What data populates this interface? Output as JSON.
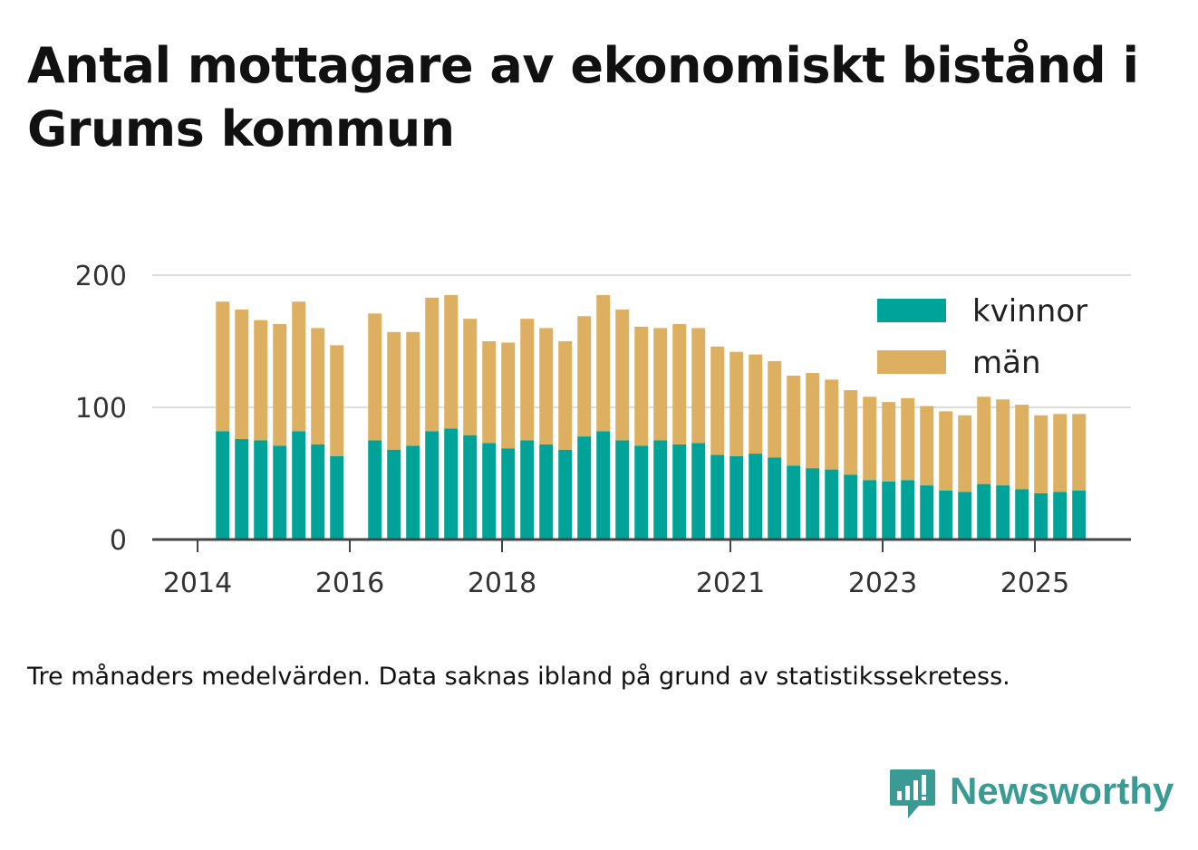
{
  "title": "Antal mottagare av ekonomiskt bistånd i Grums kommun",
  "note": "Tre månaders medelvärden. Data saknas ibland på grund av statistikssekretess.",
  "brand": {
    "name": "Newsworthy",
    "icon": "newsworthy-logo-icon",
    "color": "#3a9a94"
  },
  "colors": {
    "kvinnor": "#00a398",
    "man": "#dcb060",
    "grid": "#dddddd",
    "axis": "#444444"
  },
  "chart_data": {
    "type": "bar",
    "stacked": true,
    "x_unit": "year",
    "x": [
      2014.33,
      2014.58,
      2014.83,
      2015.08,
      2015.33,
      2015.58,
      2015.83,
      2016.33,
      2016.58,
      2016.83,
      2017.08,
      2017.33,
      2017.58,
      2017.83,
      2018.08,
      2018.33,
      2018.58,
      2018.83,
      2019.08,
      2019.33,
      2019.58,
      2019.83,
      2020.08,
      2020.33,
      2020.58,
      2020.83,
      2021.08,
      2021.33,
      2021.58,
      2021.83,
      2022.08,
      2022.33,
      2022.58,
      2022.83,
      2023.08,
      2023.33,
      2023.58,
      2023.83,
      2024.08,
      2024.33,
      2024.58,
      2024.83,
      2025.08,
      2025.33,
      2025.58
    ],
    "series": [
      {
        "name": "kvinnor",
        "values": [
          82,
          76,
          75,
          71,
          82,
          72,
          63,
          75,
          68,
          71,
          82,
          84,
          79,
          73,
          69,
          75,
          72,
          68,
          78,
          82,
          75,
          71,
          75,
          72,
          73,
          64,
          63,
          65,
          62,
          56,
          54,
          53,
          49,
          45,
          44,
          45,
          41,
          37,
          36,
          42,
          41,
          38,
          35,
          36,
          37
        ]
      },
      {
        "name": "män",
        "values": [
          98,
          98,
          91,
          92,
          98,
          88,
          84,
          96,
          89,
          86,
          101,
          101,
          88,
          77,
          80,
          92,
          88,
          82,
          91,
          103,
          99,
          90,
          85,
          91,
          87,
          82,
          79,
          75,
          73,
          68,
          72,
          68,
          64,
          63,
          60,
          62,
          60,
          60,
          58,
          66,
          65,
          64,
          59,
          59,
          58
        ]
      }
    ],
    "yticks": [
      0,
      100,
      200
    ],
    "xticks": [
      2014,
      2016,
      2018,
      2021,
      2023,
      2025
    ],
    "ylim": [
      0,
      200
    ],
    "grid": true,
    "legend_position": "top-right"
  }
}
